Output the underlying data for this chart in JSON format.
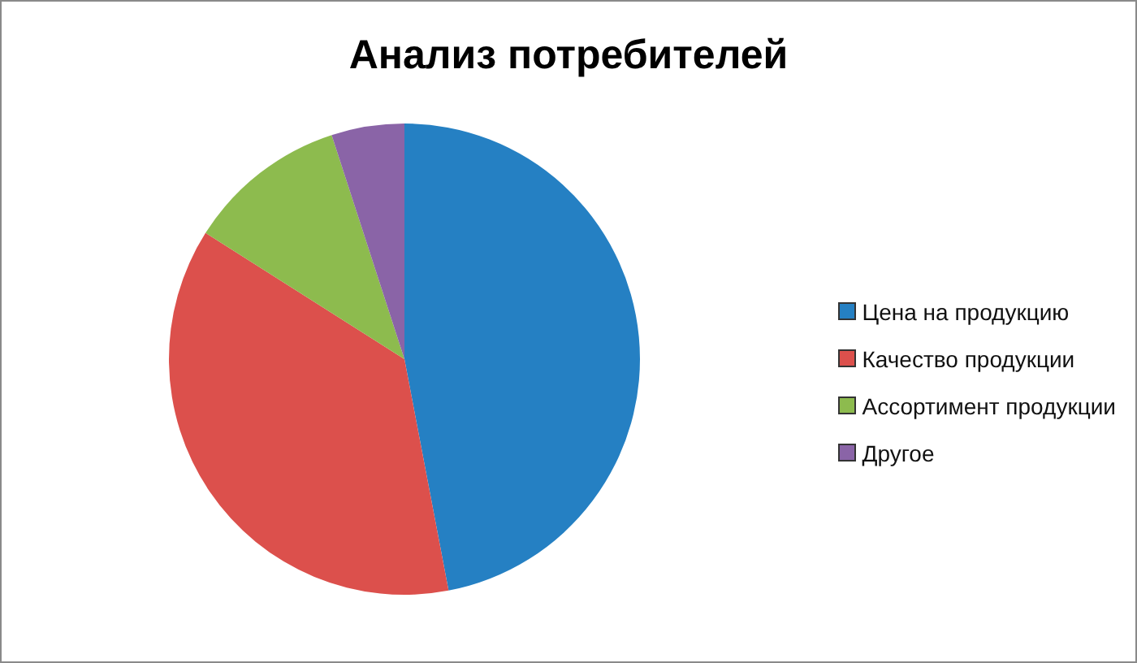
{
  "chart_data": {
    "type": "pie",
    "title": "Анализ потребителей",
    "categories": [
      "Цена на продукцию",
      "Качество продукции",
      "Ассортимент продукции",
      "Другое"
    ],
    "values": [
      47,
      37,
      11,
      5
    ],
    "colors": [
      "#2580c3",
      "#dc504c",
      "#8dbb4e",
      "#8a64a7"
    ],
    "legend": "right"
  }
}
